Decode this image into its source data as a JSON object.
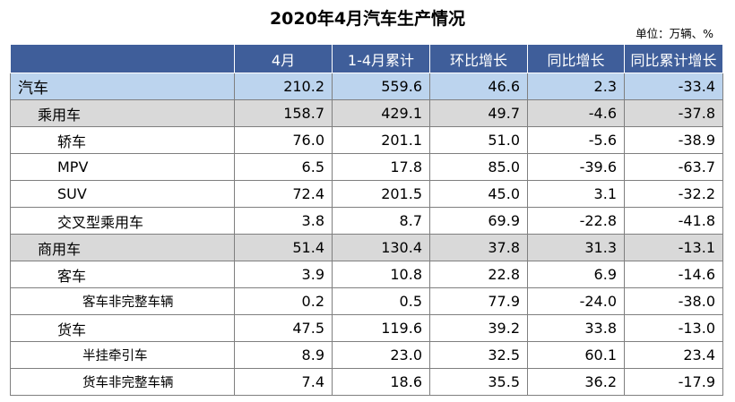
{
  "title": "2020年4月汽车生产情况",
  "unit": "单位：万辆、%",
  "headers": [
    "",
    "4月",
    "1-4月累计",
    "环比增长",
    "同比增长",
    "同比累计增长"
  ],
  "rows": [
    {
      "name": "汽车",
      "level": 0,
      "values": [
        "210.2",
        "559.6",
        "46.6",
        "2.3",
        "-33.4"
      ]
    },
    {
      "name": "乘用车",
      "level": 1,
      "values": [
        "158.7",
        "429.1",
        "49.7",
        "-4.6",
        "-37.8"
      ]
    },
    {
      "name": "轿车",
      "level": 2,
      "values": [
        "76.0",
        "201.1",
        "51.0",
        "-5.6",
        "-38.9"
      ]
    },
    {
      "name": "MPV",
      "level": 2,
      "values": [
        "6.5",
        "17.8",
        "85.0",
        "-39.6",
        "-63.7"
      ]
    },
    {
      "name": "SUV",
      "level": 2,
      "values": [
        "72.4",
        "201.5",
        "45.0",
        "3.1",
        "-32.2"
      ]
    },
    {
      "name": "交叉型乘用车",
      "level": 2,
      "values": [
        "3.8",
        "8.7",
        "69.9",
        "-22.8",
        "-41.8"
      ]
    },
    {
      "name": "商用车",
      "level": 1,
      "values": [
        "51.4",
        "130.4",
        "37.8",
        "31.3",
        "-13.1"
      ]
    },
    {
      "name": "客车",
      "level": 2,
      "values": [
        "3.9",
        "10.8",
        "22.8",
        "6.9",
        "-14.6"
      ]
    },
    {
      "name": "客车非完整车辆",
      "level": 3,
      "values": [
        "0.2",
        "0.5",
        "77.9",
        "-24.0",
        "-38.0"
      ]
    },
    {
      "name": "货车",
      "level": 2,
      "values": [
        "47.5",
        "119.6",
        "39.2",
        "33.8",
        "-13.0"
      ]
    },
    {
      "name": "半挂牵引车",
      "level": 3,
      "values": [
        "8.9",
        "23.0",
        "32.5",
        "60.1",
        "23.4"
      ]
    },
    {
      "name": "货车非完整车辆",
      "level": 3,
      "values": [
        "7.4",
        "18.6",
        "35.5",
        "36.2",
        "-17.9"
      ]
    }
  ]
}
